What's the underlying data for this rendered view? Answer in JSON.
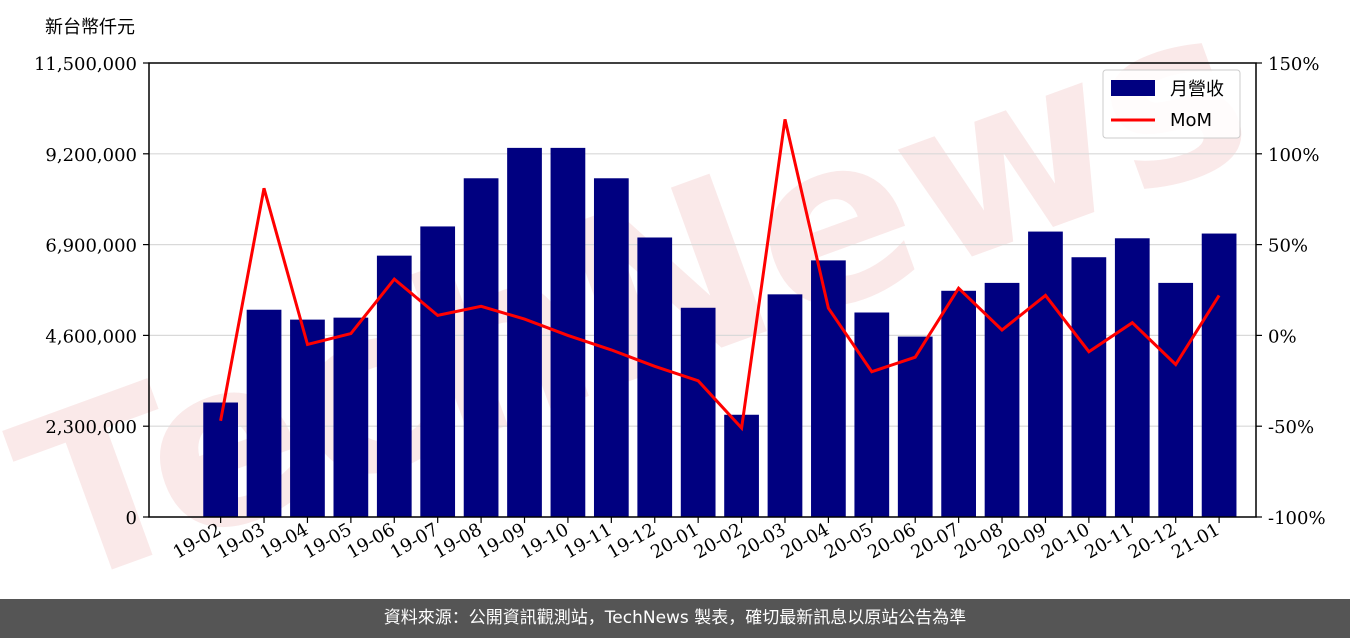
{
  "y_unit_label": "新台幣仟元",
  "watermark_text": "TechNews",
  "footer_text": "資料來源：公開資訊觀測站，TechNews 製表，確切最新訊息以原站公告為準",
  "colors": {
    "bar": "#000080",
    "line": "#ff0000",
    "grid": "#d9d9d9",
    "watermark": "#f6d8d8",
    "footer_bg": "#555555"
  },
  "chart_data": {
    "type": "bar",
    "categories": [
      "19-02",
      "19-03",
      "19-04",
      "19-05",
      "19-06",
      "19-07",
      "19-08",
      "19-09",
      "19-10",
      "19-11",
      "19-12",
      "20-01",
      "20-02",
      "20-03",
      "20-04",
      "20-05",
      "20-06",
      "20-07",
      "20-08",
      "20-09",
      "20-10",
      "20-11",
      "20-12",
      "21-01"
    ],
    "series": [
      {
        "name": "月營收",
        "type": "bar",
        "axis": "left",
        "values": [
          2900000,
          5250000,
          5000000,
          5050000,
          6620000,
          7360000,
          8580000,
          9350000,
          9350000,
          8580000,
          7080000,
          5300000,
          2590000,
          5640000,
          6500000,
          5180000,
          4570000,
          5730000,
          5930000,
          7230000,
          6580000,
          7060000,
          5930000,
          7180000
        ]
      },
      {
        "name": "MoM",
        "type": "line",
        "axis": "right",
        "values": [
          -0.47,
          0.81,
          -0.05,
          0.01,
          0.31,
          0.11,
          0.16,
          0.09,
          0.0,
          -0.08,
          -0.17,
          -0.25,
          -0.51,
          1.19,
          0.15,
          -0.2,
          -0.12,
          0.26,
          0.03,
          0.22,
          -0.09,
          0.07,
          -0.16,
          0.22
        ]
      }
    ],
    "y_left": {
      "ylim": [
        0,
        11500000
      ],
      "ticks": [
        0,
        2300000,
        4600000,
        6900000,
        9200000,
        11500000
      ],
      "tick_labels": [
        "0",
        "2,300,000",
        "4,600,000",
        "6,900,000",
        "9,200,000",
        "11,500,000"
      ]
    },
    "y_right": {
      "ylim": [
        -1.0,
        1.5
      ],
      "ticks": [
        -1.0,
        -0.5,
        0.0,
        0.5,
        1.0,
        1.5
      ],
      "tick_labels": [
        "-100%",
        "-50%",
        "0%",
        "50%",
        "100%",
        "150%"
      ]
    },
    "grid": true,
    "legend_position": "top-right"
  }
}
